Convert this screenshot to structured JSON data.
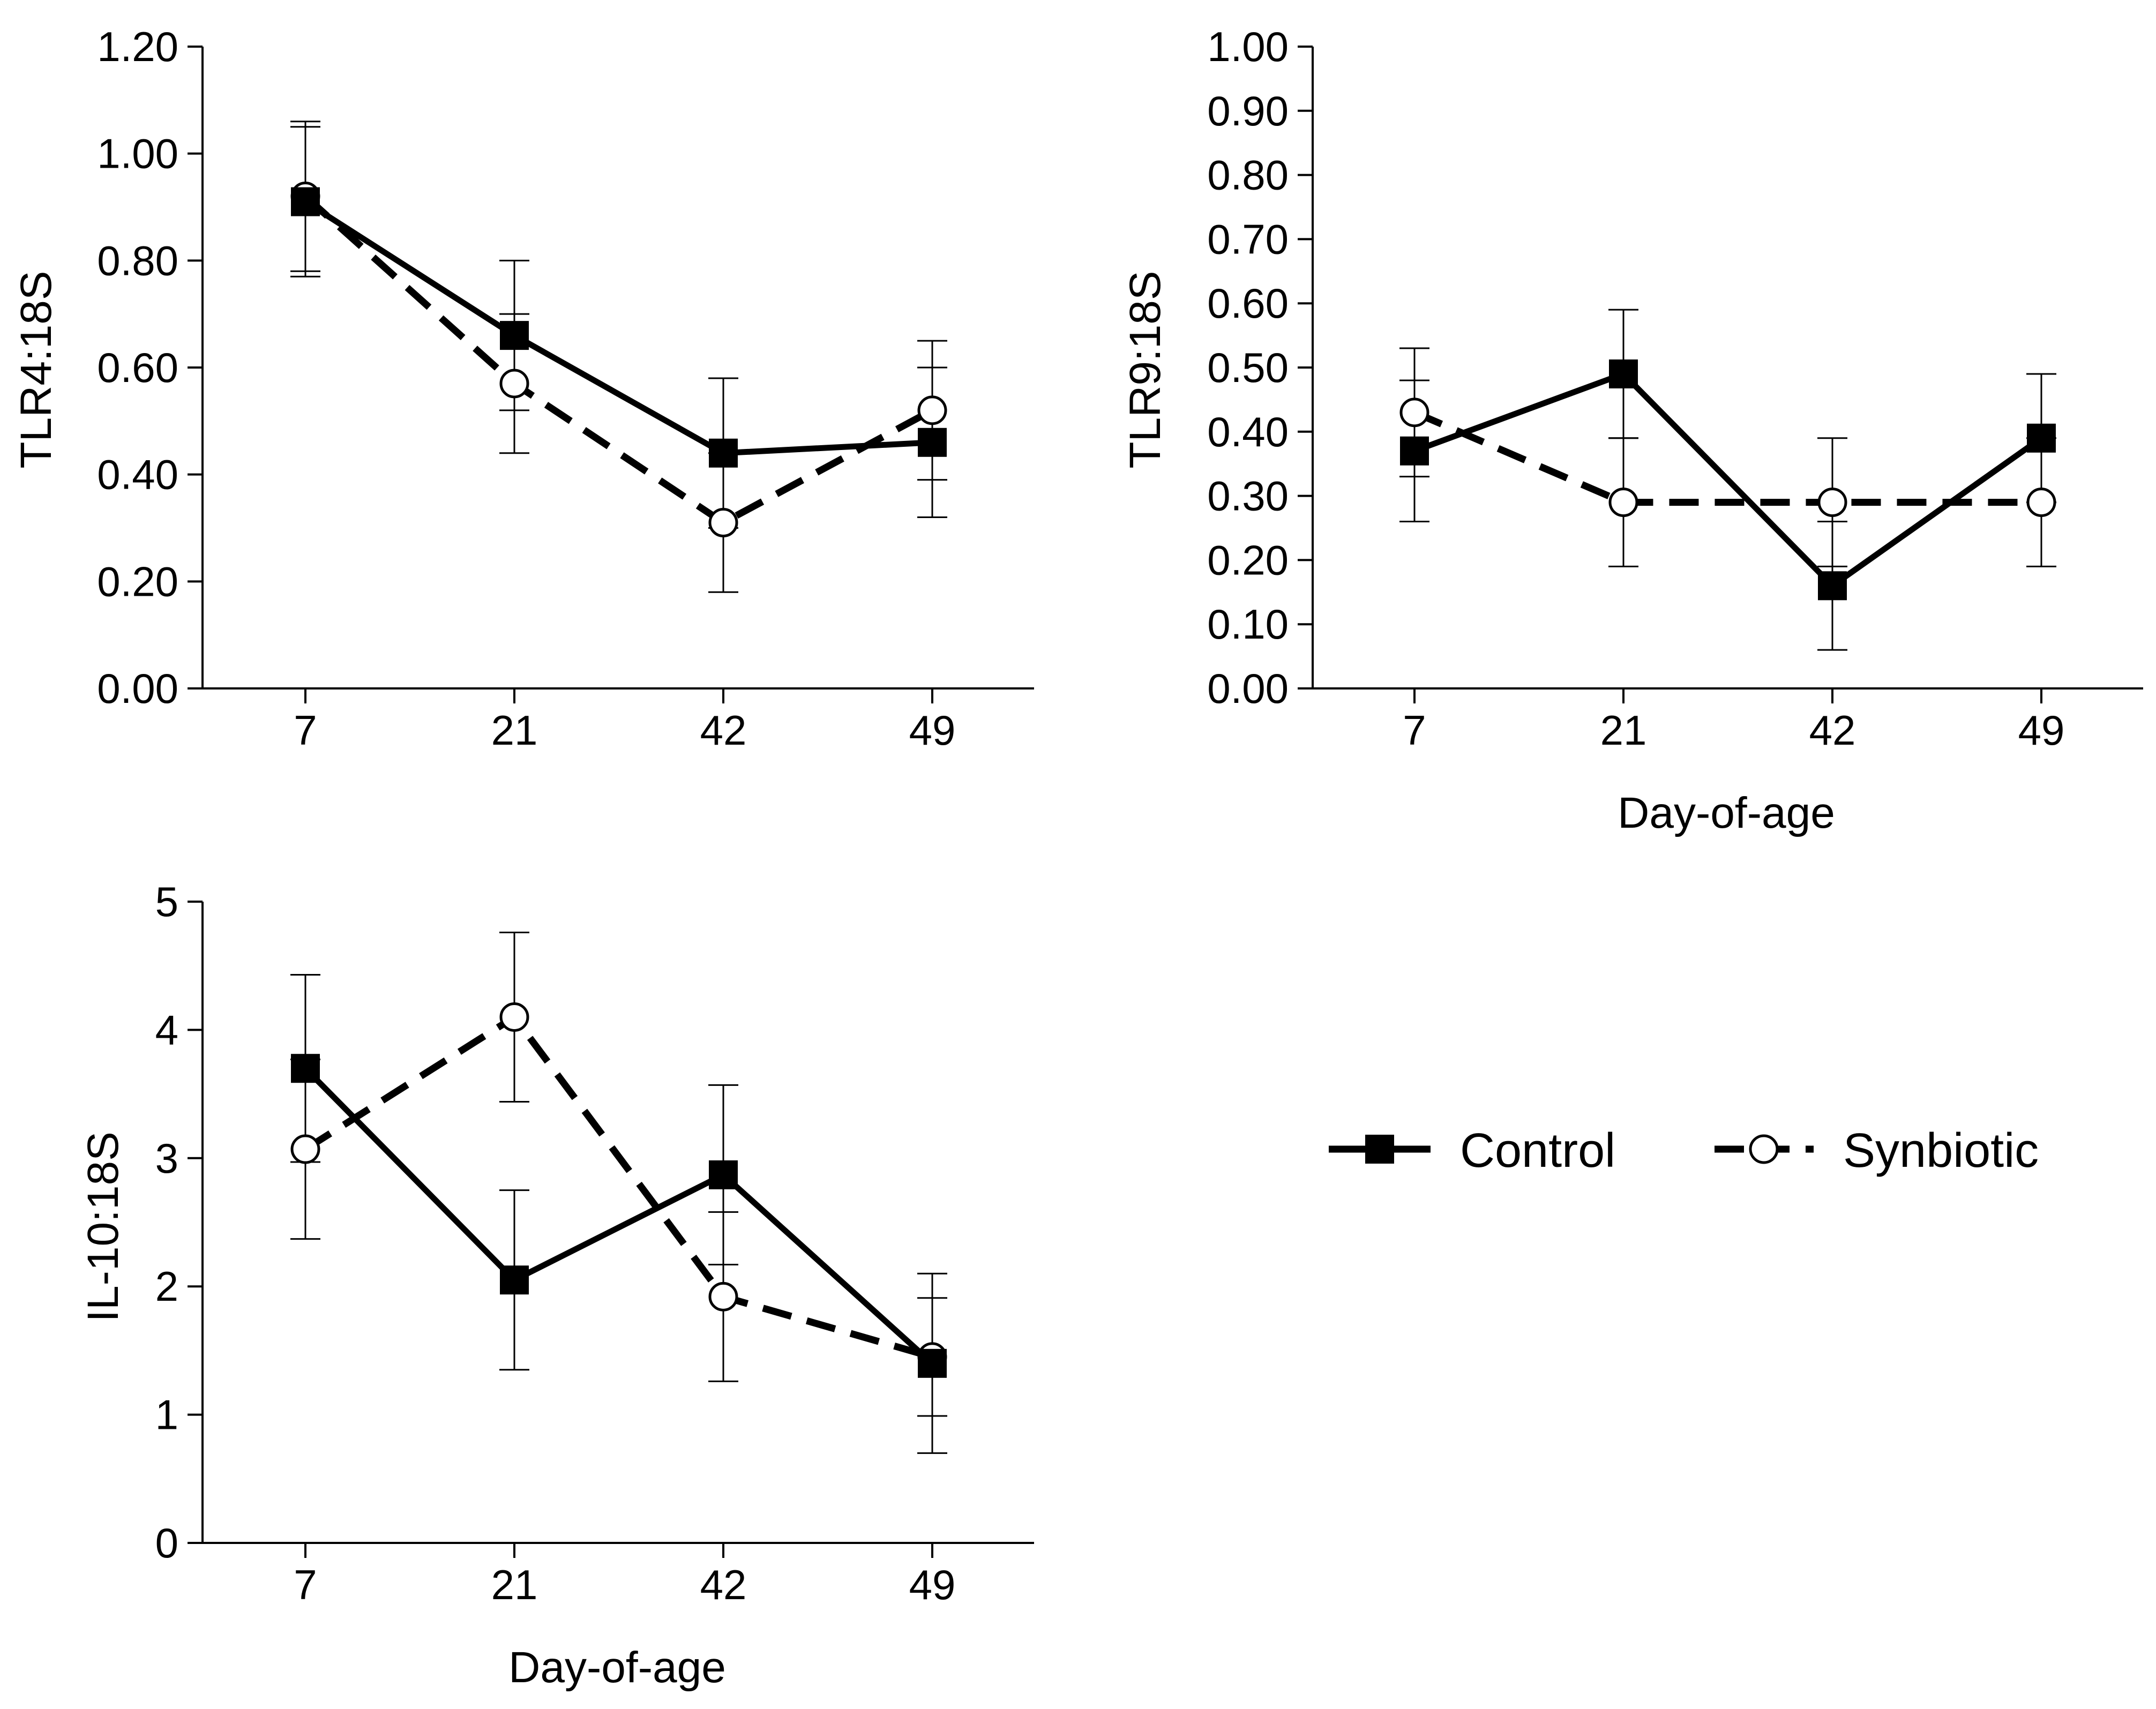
{
  "legend": {
    "control_label": "Control",
    "synbiotic_label": "Synbiotic"
  },
  "chart_data": [
    {
      "id": "tlr4",
      "type": "line",
      "title": "",
      "xlabel": "",
      "ylabel": "TLR4:18S",
      "categories": [
        "7",
        "21",
        "42",
        "49"
      ],
      "ylim": [
        0,
        1.2
      ],
      "yticks": [
        "0.00",
        "0.20",
        "0.40",
        "0.60",
        "0.80",
        "1.00",
        "1.20"
      ],
      "series": [
        {
          "name": "Control",
          "values": [
            0.91,
            0.66,
            0.44,
            0.46
          ],
          "err": [
            0.14,
            0.14,
            0.14,
            0.14
          ]
        },
        {
          "name": "Synbiotic",
          "values": [
            0.92,
            0.57,
            0.31,
            0.52
          ],
          "err": [
            0.14,
            0.13,
            0.13,
            0.13
          ]
        }
      ]
    },
    {
      "id": "tlr9",
      "type": "line",
      "title": "",
      "xlabel": "Day-of-age",
      "ylabel": "TLR9:18S",
      "categories": [
        "7",
        "21",
        "42",
        "49"
      ],
      "ylim": [
        0,
        1.0
      ],
      "yticks": [
        "0.00",
        "0.10",
        "0.20",
        "0.30",
        "0.40",
        "0.50",
        "0.60",
        "0.70",
        "0.80",
        "0.90",
        "1.00"
      ],
      "series": [
        {
          "name": "Control",
          "values": [
            0.37,
            0.49,
            0.16,
            0.39
          ],
          "err": [
            0.11,
            0.1,
            0.1,
            0.1
          ]
        },
        {
          "name": "Synbiotic",
          "values": [
            0.43,
            0.29,
            0.29,
            0.29
          ],
          "err": [
            0.1,
            0.1,
            0.1,
            0.1
          ]
        }
      ]
    },
    {
      "id": "il10",
      "type": "line",
      "title": "",
      "xlabel": "Day-of-age",
      "ylabel": "IL-10:18S",
      "categories": [
        "7",
        "21",
        "42",
        "49"
      ],
      "ylim": [
        0,
        5
      ],
      "yticks": [
        "0",
        "1",
        "2",
        "3",
        "4",
        "5"
      ],
      "series": [
        {
          "name": "Control",
          "values": [
            3.7,
            2.05,
            2.87,
            1.4
          ],
          "err": [
            0.73,
            0.7,
            0.7,
            0.7
          ]
        },
        {
          "name": "Synbiotic",
          "values": [
            3.07,
            4.1,
            1.92,
            1.45
          ],
          "err": [
            0.7,
            0.66,
            0.66,
            0.46
          ]
        }
      ]
    }
  ]
}
